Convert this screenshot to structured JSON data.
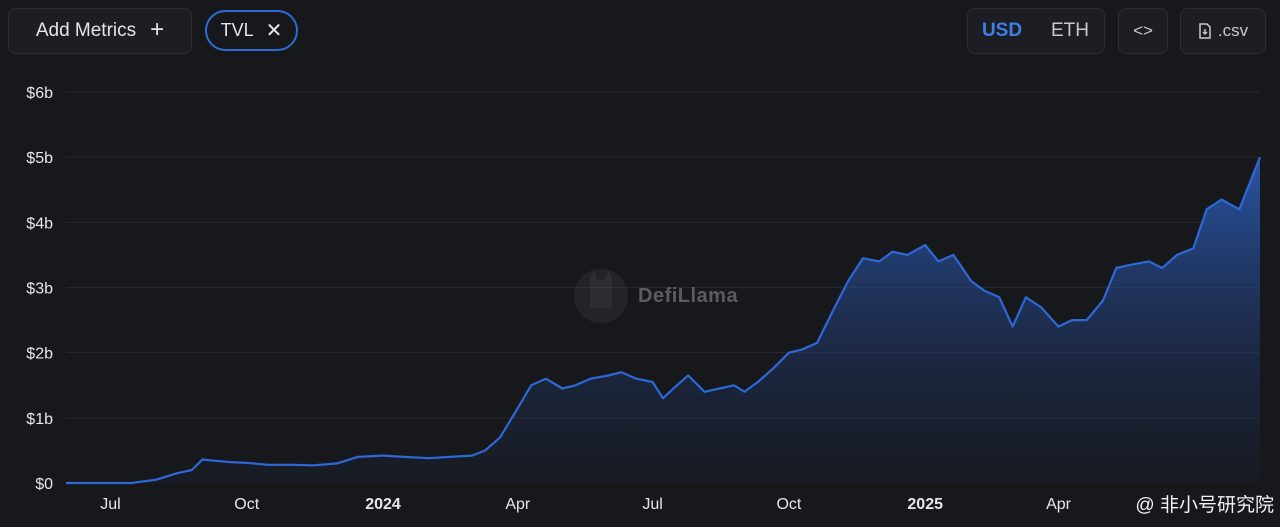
{
  "toolbar": {
    "add_metrics_label": "Add Metrics",
    "add_icon": "plus-icon",
    "metric_chip_label": "TVL",
    "metric_chip_icon": "close-icon",
    "unit_options": [
      "USD",
      "ETH"
    ],
    "selected_unit": "USD",
    "embed_icon": "code-icon",
    "csv_label": ".csv",
    "csv_icon": "file-download-icon"
  },
  "watermark": {
    "text": "DefiLlama",
    "icon": "llama-logo-icon"
  },
  "source_mark": {
    "text": "@ 非小号研究院"
  },
  "colors": {
    "background": "#17181c",
    "line": "#2d68d6",
    "accent": "#3d7fe6",
    "grid": "#26282e"
  },
  "chart_data": {
    "type": "area",
    "title": "",
    "xlabel": "",
    "ylabel": "",
    "x_start": "2023-06-01",
    "x_end": "2025-08-15",
    "ylim": [
      0,
      6
    ],
    "y_unit": "billion USD",
    "y_ticks": [
      {
        "value": 0,
        "label": "$0"
      },
      {
        "value": 1,
        "label": "$1b"
      },
      {
        "value": 2,
        "label": "$2b"
      },
      {
        "value": 3,
        "label": "$3b"
      },
      {
        "value": 4,
        "label": "$4b"
      },
      {
        "value": 5,
        "label": "$5b"
      },
      {
        "value": 6,
        "label": "$6b"
      }
    ],
    "x_ticks": [
      {
        "date": "2023-07-01",
        "label": "Jul",
        "bold": false
      },
      {
        "date": "2023-10-01",
        "label": "Oct",
        "bold": false
      },
      {
        "date": "2024-01-01",
        "label": "2024",
        "bold": true
      },
      {
        "date": "2024-04-01",
        "label": "Apr",
        "bold": false
      },
      {
        "date": "2024-07-01",
        "label": "Jul",
        "bold": false
      },
      {
        "date": "2024-10-01",
        "label": "Oct",
        "bold": false
      },
      {
        "date": "2025-01-01",
        "label": "2025",
        "bold": true
      },
      {
        "date": "2025-04-01",
        "label": "Apr",
        "bold": false
      }
    ],
    "grid": true,
    "legend": "none",
    "series": [
      {
        "x": [
          "2023-06-01",
          "2023-07-15",
          "2023-08-01",
          "2023-08-15",
          "2023-08-25",
          "2023-09-01",
          "2023-09-10",
          "2023-09-20",
          "2023-10-01",
          "2023-10-15",
          "2023-11-01",
          "2023-11-15",
          "2023-12-01",
          "2023-12-15",
          "2024-01-01",
          "2024-01-15",
          "2024-02-01",
          "2024-02-15",
          "2024-03-01",
          "2024-03-10",
          "2024-03-20",
          "2024-04-01",
          "2024-04-10",
          "2024-04-20",
          "2024-05-01",
          "2024-05-10",
          "2024-05-20",
          "2024-06-01",
          "2024-06-10",
          "2024-06-20",
          "2024-07-01",
          "2024-07-08",
          "2024-07-15",
          "2024-07-25",
          "2024-08-05",
          "2024-08-15",
          "2024-08-25",
          "2024-09-01",
          "2024-09-10",
          "2024-09-20",
          "2024-10-01",
          "2024-10-10",
          "2024-10-20",
          "2024-11-01",
          "2024-11-10",
          "2024-11-20",
          "2024-12-01",
          "2024-12-10",
          "2024-12-20",
          "2025-01-01",
          "2025-01-10",
          "2025-01-20",
          "2025-02-01",
          "2025-02-10",
          "2025-02-20",
          "2025-03-01",
          "2025-03-10",
          "2025-03-20",
          "2025-04-01",
          "2025-04-10",
          "2025-04-20",
          "2025-05-01",
          "2025-05-10",
          "2025-05-20",
          "2025-06-01",
          "2025-06-10",
          "2025-06-20",
          "2025-07-01",
          "2025-07-10",
          "2025-07-20",
          "2025-08-01",
          "2025-08-15"
        ],
        "y": [
          0,
          0,
          0.05,
          0.15,
          0.2,
          0.36,
          0.34,
          0.32,
          0.31,
          0.28,
          0.28,
          0.27,
          0.3,
          0.4,
          0.42,
          0.4,
          0.38,
          0.4,
          0.42,
          0.5,
          0.7,
          1.15,
          1.5,
          1.6,
          1.45,
          1.5,
          1.6,
          1.65,
          1.7,
          1.6,
          1.55,
          1.3,
          1.45,
          1.65,
          1.4,
          1.45,
          1.5,
          1.4,
          1.55,
          1.75,
          2.0,
          2.05,
          2.15,
          2.7,
          3.1,
          3.45,
          3.4,
          3.55,
          3.5,
          3.65,
          3.4,
          3.5,
          3.1,
          2.95,
          2.85,
          2.4,
          2.85,
          2.7,
          2.4,
          2.5,
          2.5,
          2.8,
          3.3,
          3.35,
          3.4,
          3.3,
          3.5,
          3.6,
          4.2,
          4.35,
          4.2,
          5.0
        ]
      }
    ]
  }
}
